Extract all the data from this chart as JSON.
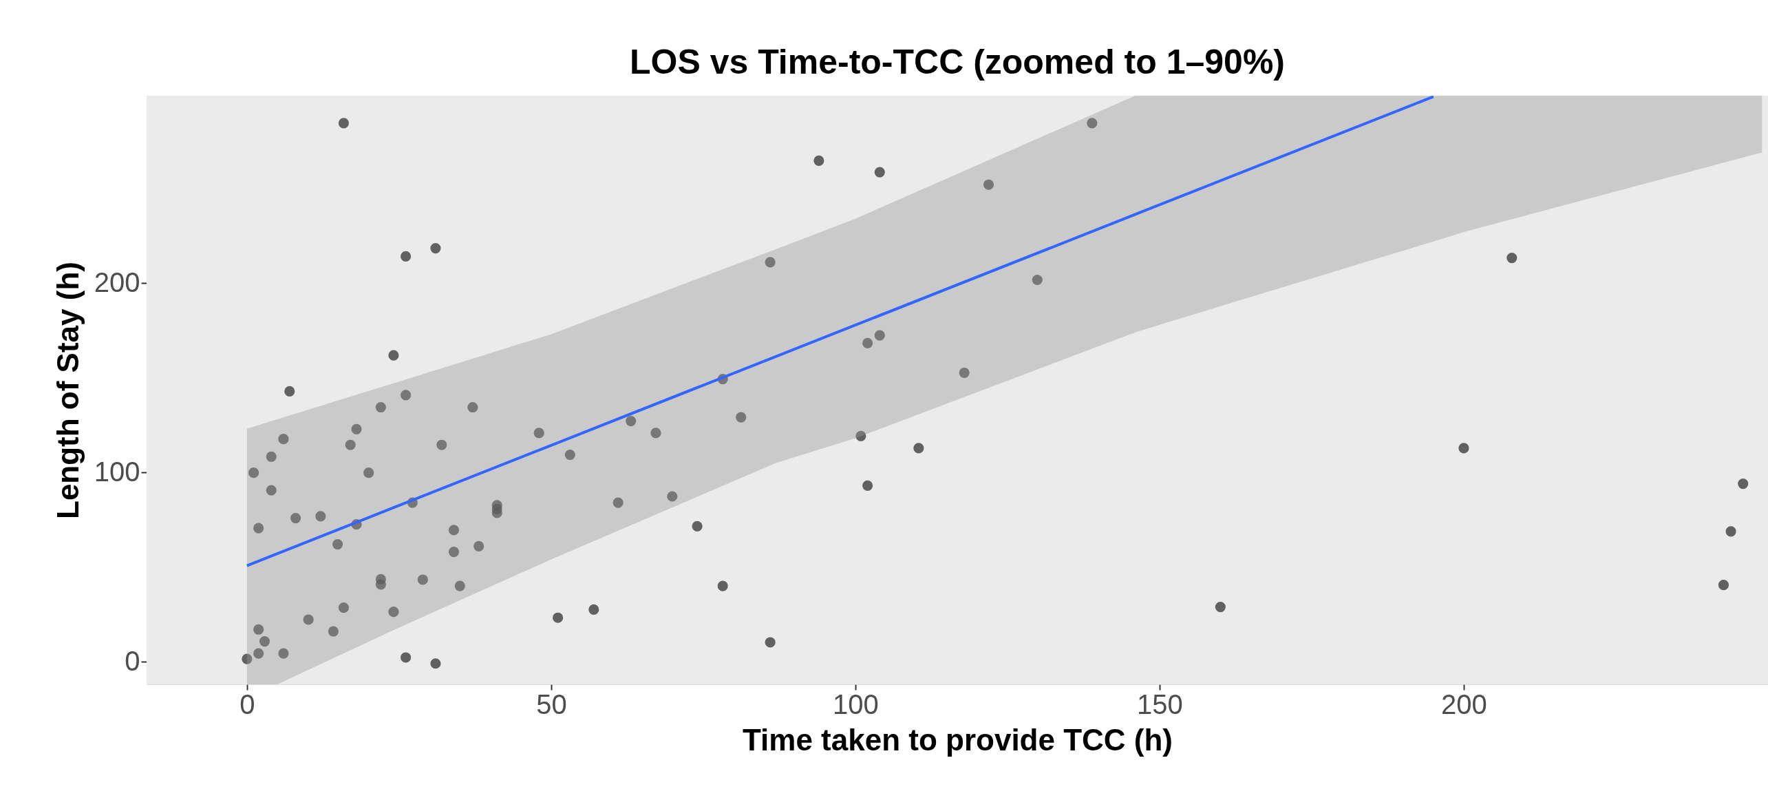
{
  "chart_data": {
    "type": "scatter",
    "title": "LOS vs Time-to-TCC (zoomed to 1–90%)",
    "xlabel": "Time taken to provide TCC (h)",
    "ylabel": "Length of Stay (h)",
    "xlim": [
      -16.5,
      250
    ],
    "ylim": [
      -12,
      299
    ],
    "xticks": [
      0,
      50,
      100,
      150,
      200
    ],
    "yticks": [
      0,
      100,
      200
    ],
    "grid": true,
    "series": [
      {
        "marker": "circle",
        "color": "#333333",
        "x": [
          15.9,
          26.1,
          31.0,
          24.1,
          7.0,
          26.1,
          22.0,
          37.1,
          86.0,
          6.0,
          18.0,
          17.0,
          32.0,
          48.0,
          4.0,
          1.1,
          20.0,
          63.1,
          67.2,
          78.2,
          81.2,
          53.1,
          4.0,
          27.2,
          41.1,
          41.1,
          41.1,
          61.0,
          69.9,
          1.9,
          8.0,
          12.1,
          18.0,
          34.0,
          14.9,
          34.0,
          38.1,
          74.0,
          22.0,
          22.0,
          28.9,
          35.0,
          78.2,
          15.9,
          24.1,
          51.1,
          57.0,
          10.1,
          1.9,
          14.2,
          2.9,
          6.0,
          1.9,
          0.0,
          26.1,
          31.0,
          86.0,
          94.0,
          104.0,
          121.9,
          138.9,
          129.9,
          102.0,
          104.0,
          117.9,
          100.9,
          110.4,
          102.0,
          160.0,
          200.0,
          207.9,
          245.9,
          243.9,
          242.7
        ],
        "values": [
          284.5,
          214.1,
          218.4,
          161.8,
          142.8,
          140.8,
          134.4,
          134.4,
          211,
          117.6,
          122.8,
          114.5,
          114.5,
          120.8,
          108.3,
          99.8,
          99.8,
          127.1,
          120.8,
          149.3,
          129.1,
          109.3,
          90.5,
          84.0,
          82.6,
          80.6,
          78.6,
          84.0,
          87.3,
          70.5,
          75.8,
          76.8,
          72.5,
          69.5,
          62.0,
          58.0,
          61.0,
          71.5,
          43.5,
          40.8,
          43.3,
          40.0,
          40.0,
          28.5,
          26.3,
          23.2,
          27.5,
          22.2,
          17.0,
          16.0,
          10.7,
          4.3,
          4.3,
          1.4,
          2.2,
          -1.0,
          10.2,
          264.7,
          258.6,
          252,
          284.5,
          201.7,
          168.3,
          172.4,
          152.6,
          119.2,
          112.8,
          93.0,
          28.9,
          112.8,
          213.3,
          94,
          68.8,
          40.5
        ]
      },
      {
        "type": "line",
        "color": "#3366ff",
        "x": [
          0,
          5,
          25,
          50,
          87,
          100,
          146,
          150,
          195,
          200,
          249
        ],
        "values": [
          50.7,
          57.1,
          82.5,
          114.3,
          161.3,
          177.8,
          236.3,
          241.4,
          298.5,
          null,
          null
        ],
        "lower": [
          -12,
          -12,
          18,
          54,
          105,
          118,
          174,
          178,
          222,
          227,
          269
        ],
        "upper": [
          123,
          128,
          148,
          173,
          218,
          234,
          299,
          299,
          299,
          299,
          299
        ]
      }
    ]
  }
}
